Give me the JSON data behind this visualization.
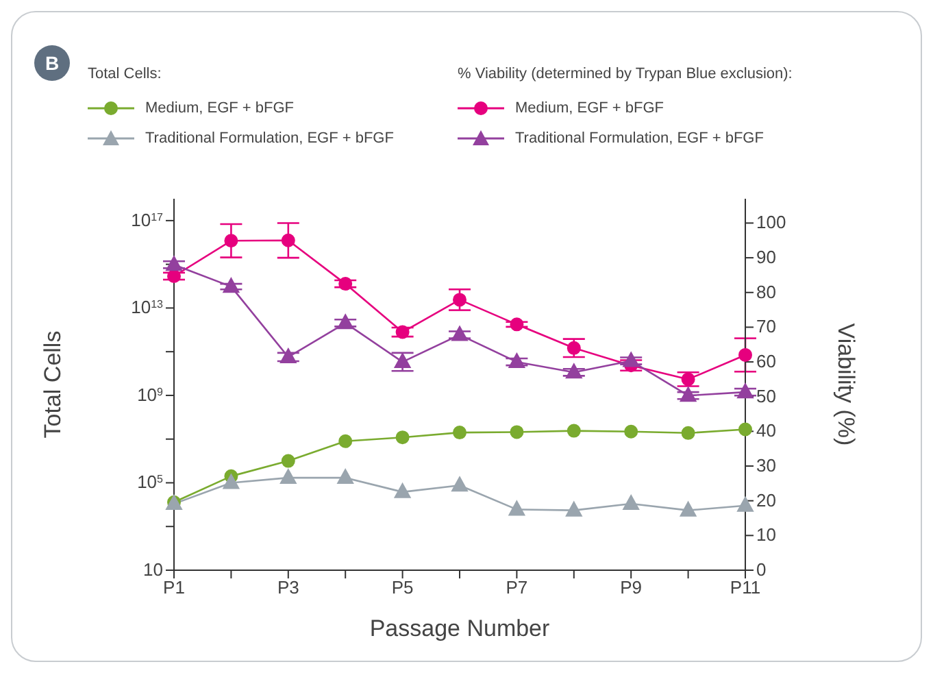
{
  "chart_data": {
    "type": "line",
    "xlabel": "Passage Number",
    "ylabel": "Total Cells",
    "y2label": "Viability (%)",
    "annotations": [
      "B",
      "Total Cells:",
      "% Viability (determined by Trypan Blue exclusion):"
    ],
    "categories": [
      "P1",
      null,
      "P3",
      null,
      "P5",
      null,
      "P7",
      null,
      "P9",
      null,
      "P11"
    ],
    "log": "y",
    "ylim": [
      10,
      1e+18
    ],
    "yticks": [
      {
        "value": 10,
        "label": "10"
      },
      {
        "value": 1000,
        "label": null
      },
      {
        "value": 100000,
        "label": "10$^{5}$"
      },
      {
        "value": 10000000,
        "label": null
      },
      {
        "value": 1000000000,
        "label": "10$^{9}$"
      },
      {
        "value": 100000000000,
        "label": null
      },
      {
        "value": 10000000000000,
        "label": "10$^{13}$"
      },
      {
        "value": 1000000000000000,
        "label": null
      },
      {
        "value": 100000000000000000,
        "label": "10$^{17}$"
      }
    ],
    "y2lim": [
      0,
      107
    ],
    "y2ticks": [
      0,
      10,
      20,
      30,
      40,
      50,
      60,
      70,
      80,
      90,
      100
    ],
    "legend": "top",
    "line_style": "solid",
    "series": [
      {
        "name": "Medium, EGF + bFGF",
        "color": "#7aab2f",
        "marker": "circle",
        "values": [
          13000,
          200000,
          1000000,
          8000000,
          12000000,
          20000000,
          21000000,
          24000000,
          22000000,
          19000000,
          28000000
        ]
      },
      {
        "name": "Traditional Formulation, EGF + bFGF",
        "color": "#9aa5ae",
        "marker": "triangle",
        "values": [
          11000,
          100000,
          170000,
          170000,
          38000,
          76000,
          6000,
          5500,
          11000,
          5500,
          9000
        ]
      },
      {
        "name": "Medium, EGF + bFGF",
        "color": "#e6007e",
        "marker": "circle",
        "axis": "y2",
        "values": [
          84.7,
          94.9,
          95,
          82.5,
          68.6,
          77.9,
          70.8,
          64,
          59,
          55,
          62
        ],
        "errors": [
          1,
          4.8,
          5,
          1,
          1.3,
          3,
          0.7,
          2.6,
          1.5,
          2,
          4.8
        ]
      },
      {
        "name": "Traditional Formulation, EGF + bFGF",
        "color": "#93409e",
        "marker": "triangle",
        "axis": "y2",
        "values": [
          88,
          81.7,
          61.4,
          71.2,
          60,
          67.8,
          60,
          57,
          60.3,
          50.3,
          51.3
        ],
        "errors": [
          1,
          0.8,
          1.2,
          1,
          2.6,
          1,
          1,
          1,
          1,
          1,
          1
        ]
      }
    ]
  }
}
